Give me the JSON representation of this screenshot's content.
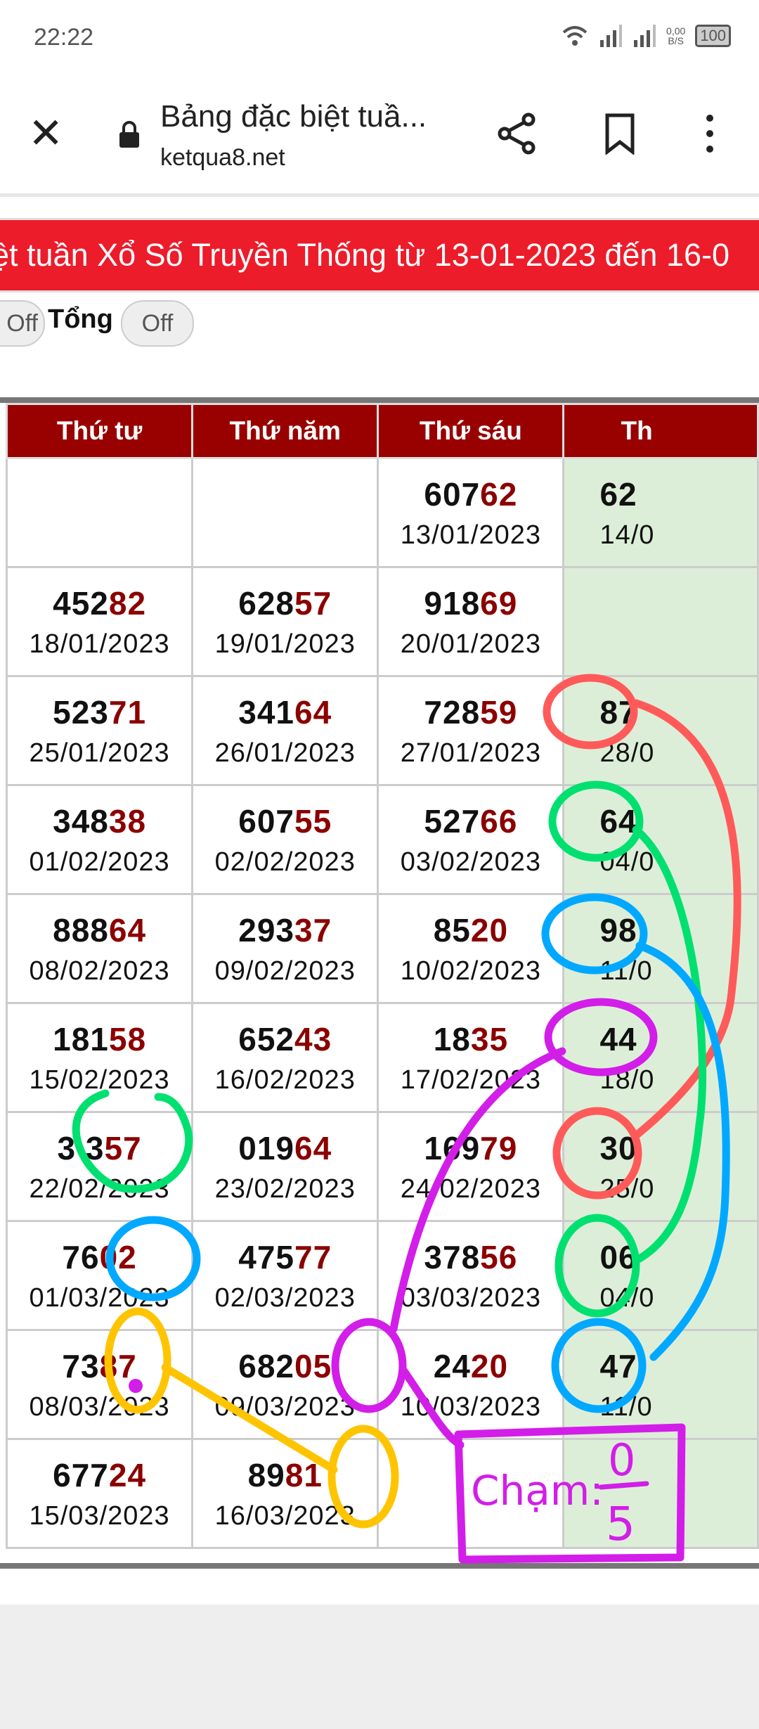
{
  "status_bar": {
    "time": "22:22",
    "net_speed_value": "0,00",
    "net_speed_unit": "B/S",
    "battery": "100"
  },
  "toolbar": {
    "title": "Bảng đặc biệt tuầ...",
    "url": "ketqua8.net",
    "icons": [
      "close-icon",
      "lock-icon",
      "share-icon",
      "bookmark-icon",
      "more-vert-icon"
    ]
  },
  "banner": {
    "text": "ệt tuần Xổ Số Truyền Thống từ 13-01-2023 đến 16-0"
  },
  "toggles": {
    "first_state": "Off",
    "tong_label": "Tổng",
    "tong_state": "Off"
  },
  "table": {
    "headers": [
      "Thứ tư",
      "Thứ năm",
      "Thứ sáu",
      "Th"
    ],
    "rows": [
      [
        {
          "h": "",
          "t": "",
          "d": ""
        },
        {
          "h": "",
          "t": "",
          "d": ""
        },
        {
          "h": "607",
          "t": "62",
          "d": "13/01/2023"
        },
        {
          "h": "62",
          "t": "",
          "d": "14/0"
        }
      ],
      [
        {
          "h": "452",
          "t": "82",
          "d": "18/01/2023"
        },
        {
          "h": "628",
          "t": "57",
          "d": "19/01/2023"
        },
        {
          "h": "918",
          "t": "69",
          "d": "20/01/2023"
        },
        {
          "h": "",
          "t": "",
          "d": ""
        }
      ],
      [
        {
          "h": "523",
          "t": "71",
          "d": "25/01/2023"
        },
        {
          "h": "341",
          "t": "64",
          "d": "26/01/2023"
        },
        {
          "h": "728",
          "t": "59",
          "d": "27/01/2023"
        },
        {
          "h": "87",
          "t": "",
          "d": "28/0"
        }
      ],
      [
        {
          "h": "348",
          "t": "38",
          "d": "01/02/2023"
        },
        {
          "h": "607",
          "t": "55",
          "d": "02/02/2023"
        },
        {
          "h": "527",
          "t": "66",
          "d": "03/02/2023"
        },
        {
          "h": "64",
          "t": "",
          "d": "04/0"
        }
      ],
      [
        {
          "h": "888",
          "t": "64",
          "d": "08/02/2023"
        },
        {
          "h": "293",
          "t": "37",
          "d": "09/02/2023"
        },
        {
          "h": "85",
          "t": "20",
          "d": "10/02/2023"
        },
        {
          "h": "98",
          "t": "",
          "d": "11/0"
        }
      ],
      [
        {
          "h": "181",
          "t": "58",
          "d": "15/02/2023"
        },
        {
          "h": "652",
          "t": "43",
          "d": "16/02/2023"
        },
        {
          "h": "18",
          "t": "35",
          "d": "17/02/2023"
        },
        {
          "h": "44",
          "t": "",
          "d": "18/0"
        }
      ],
      [
        {
          "h": "3 3",
          "t": "57",
          "d": "22/02/2023"
        },
        {
          "h": "019",
          "t": "64",
          "d": "23/02/2023"
        },
        {
          "h": "169",
          "t": "79",
          "d": "24/02/2023"
        },
        {
          "h": "30",
          "t": "",
          "d": "25/0"
        }
      ],
      [
        {
          "h": "76",
          "t": "02",
          "d": "01/03/2023"
        },
        {
          "h": "475",
          "t": "77",
          "d": "02/03/2023"
        },
        {
          "h": "378",
          "t": "56",
          "d": "03/03/2023"
        },
        {
          "h": "06",
          "t": "",
          "d": "04/0"
        }
      ],
      [
        {
          "h": "73",
          "t": "87",
          "d": "08/03/2023"
        },
        {
          "h": "682",
          "t": "05",
          "d": "09/03/2023"
        },
        {
          "h": "24",
          "t": "20",
          "d": "10/03/2023"
        },
        {
          "h": "47",
          "t": "",
          "d": "11/0"
        }
      ],
      [
        {
          "h": "677",
          "t": "24",
          "d": "15/03/2023"
        },
        {
          "h": "89",
          "t": "81",
          "d": "16/03/2023"
        },
        {
          "h": "",
          "t": "",
          "d": ""
        },
        {
          "h": "",
          "t": "",
          "d": ""
        }
      ]
    ]
  },
  "annotation": {
    "label": "Chạm:",
    "numerator": "0",
    "denominator": "5",
    "colors": {
      "red": "#ff5a5a",
      "green": "#00e070",
      "blue": "#00a8ff",
      "purple": "#d21ee8",
      "yellow": "#ffc400"
    }
  },
  "colors": {
    "banner": "#ec1c2a",
    "header": "#990000",
    "tail_digits": "#8b0000",
    "saturday_bg": "#ddeed8"
  }
}
